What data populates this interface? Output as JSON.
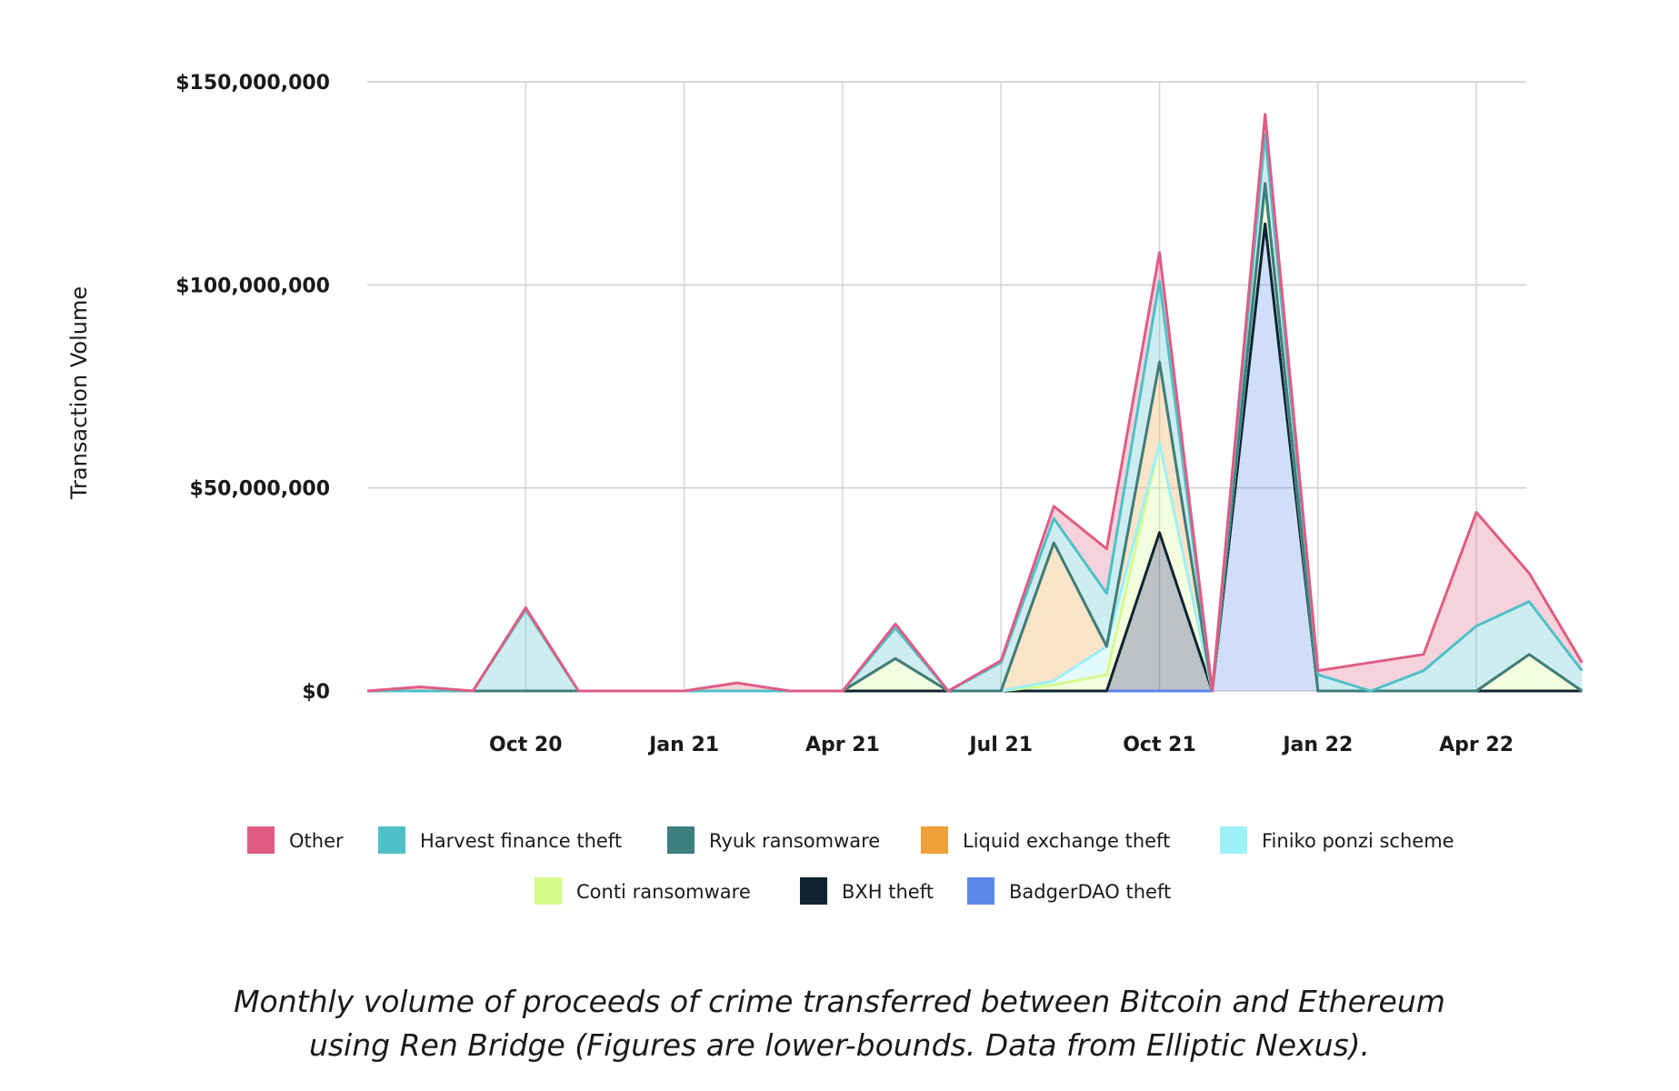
{
  "chart_data": {
    "type": "area",
    "stacked": true,
    "title": "",
    "xlabel": "",
    "ylabel": "Transaction Volume",
    "ylim": [
      0,
      150000000
    ],
    "y_ticks": [
      0,
      50000000,
      100000000,
      150000000
    ],
    "y_tick_labels": [
      "$0",
      "$50,000,000",
      "$100,000,000",
      "$150,000,000"
    ],
    "x_ticks": [
      3,
      6,
      9,
      12,
      15,
      18,
      21
    ],
    "x_tick_labels": [
      "Oct 20",
      "Jan 21",
      "Apr 21",
      "Jul 21",
      "Oct 21",
      "Jan 22",
      "Apr 22"
    ],
    "x": [
      "Jul 20",
      "Aug 20",
      "Sep 20",
      "Oct 20",
      "Nov 20",
      "Dec 20",
      "Jan 21",
      "Feb 21",
      "Mar 21",
      "Apr 21",
      "May 21",
      "Jun 21",
      "Jul 21",
      "Aug 21",
      "Sep 21",
      "Oct 21",
      "Nov 21",
      "Dec 21",
      "Jan 22",
      "Feb 22",
      "Mar 22",
      "Apr 22",
      "May 22",
      "Jun 22"
    ],
    "grid": true,
    "legend_position": "bottom",
    "series": [
      {
        "name": "BadgerDAO theft",
        "color": "#5b87e8",
        "values": [
          0,
          0,
          0,
          0,
          0,
          0,
          0,
          0,
          0,
          0,
          0,
          0,
          0,
          0,
          0,
          0,
          0,
          115000000,
          0,
          0,
          0,
          0,
          0,
          0
        ]
      },
      {
        "name": "BXH theft",
        "color": "#0f2430",
        "values": [
          0,
          0,
          0,
          0,
          0,
          0,
          0,
          0,
          0,
          0,
          0,
          0,
          0,
          0,
          0,
          39000000,
          0,
          0,
          0,
          0,
          0,
          0,
          0,
          0
        ]
      },
      {
        "name": "Conti ransomware",
        "color": "#d4fb8c",
        "values": [
          0,
          0,
          0,
          0,
          0,
          0,
          0,
          0,
          0,
          0,
          8000000,
          0,
          0,
          1500000,
          4000000,
          22000000,
          0,
          9000000,
          0,
          0,
          0,
          0,
          9000000,
          0
        ]
      },
      {
        "name": "Finiko ponzi scheme",
        "color": "#9cf0f8",
        "values": [
          0,
          0,
          0,
          0,
          0,
          0,
          0,
          0,
          0,
          0,
          0,
          0,
          0,
          1000000,
          7000000,
          0,
          0,
          0,
          0,
          0,
          0,
          0,
          0,
          0
        ]
      },
      {
        "name": "Liquid exchange theft",
        "color": "#f0a038",
        "values": [
          0,
          0,
          0,
          0,
          0,
          0,
          0,
          0,
          0,
          0,
          0,
          0,
          0,
          34000000,
          0,
          20000000,
          0,
          1000000,
          0,
          0,
          0,
          0,
          0,
          0
        ]
      },
      {
        "name": "Ryuk ransomware",
        "color": "#3d7e7e",
        "values": [
          0,
          0,
          0,
          0,
          0,
          0,
          0,
          0,
          0,
          0,
          0,
          0,
          0,
          0,
          0,
          0,
          0,
          0,
          0,
          0,
          0,
          0,
          0,
          0
        ]
      },
      {
        "name": "Harvest finance theft",
        "color": "#4fc0c8",
        "values": [
          0,
          0,
          0,
          20000000,
          0,
          0,
          0,
          0,
          0,
          0,
          7500000,
          0,
          7000000,
          6000000,
          13000000,
          20000000,
          0,
          12000000,
          4000000,
          0,
          5000000,
          16000000,
          13000000,
          5000000
        ]
      },
      {
        "name": "Other",
        "color": "#e05c82",
        "values": [
          0,
          1000000,
          0,
          500000,
          0,
          0,
          0,
          2000000,
          0,
          0,
          1000000,
          0,
          500000,
          3000000,
          11000000,
          7000000,
          0,
          5000000,
          1000000,
          7000000,
          4000000,
          28000000,
          7000000,
          2000000
        ]
      }
    ]
  },
  "legend": {
    "row1": [
      "Other",
      "Harvest finance theft",
      "Ryuk ransomware",
      "Liquid exchange theft",
      "Finiko ponzi scheme"
    ],
    "row2": [
      "Conti ransomware",
      "BXH theft",
      "BadgerDAO theft"
    ]
  },
  "caption": {
    "line1": "Monthly volume of proceeds of crime transferred between Bitcoin and Ethereum",
    "line2": "using Ren Bridge (Figures are lower-bounds. Data from Elliptic Nexus)."
  }
}
